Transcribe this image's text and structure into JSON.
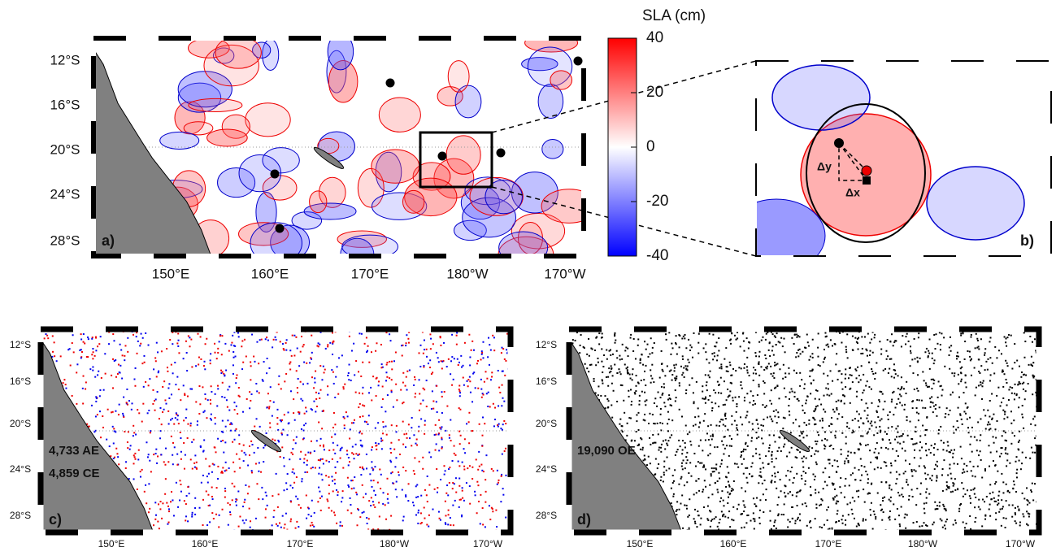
{
  "panels": [
    {
      "label": "a)",
      "lat_labels": [
        "12°S",
        "16°S",
        "20°S",
        "24°S",
        "28°S"
      ],
      "lon_labels": [
        "150°E",
        "160°E",
        "170°E",
        "180°W",
        "170°W"
      ]
    },
    {
      "label": "b)",
      "annotations": [
        "Δy",
        "Δx"
      ]
    },
    {
      "label": "c)",
      "lat_labels": [
        "12°S",
        "16°S",
        "20°S",
        "24°S",
        "28°S"
      ],
      "lon_labels": [
        "150°E",
        "160°E",
        "170°E",
        "180°W",
        "170°W"
      ],
      "annotations": [
        "4,733 AE",
        "4,859 CE"
      ]
    },
    {
      "label": "d)",
      "lat_labels": [
        "12°S",
        "16°S",
        "20°S",
        "24°S",
        "28°S"
      ],
      "lon_labels": [
        "150°E",
        "160°E",
        "170°E",
        "180°W",
        "170°W"
      ],
      "annotations": [
        "19,090 OE"
      ]
    }
  ],
  "colorbar": {
    "title": "SLA (cm)",
    "lim": [
      -40,
      40
    ],
    "ticks": [
      -40,
      -20,
      0,
      20,
      40
    ]
  }
}
